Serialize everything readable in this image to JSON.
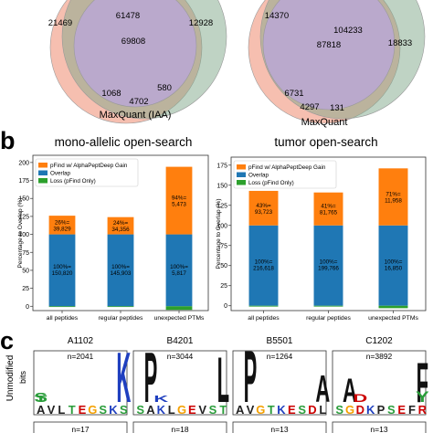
{
  "panel_letters": {
    "b": "b",
    "c": "c"
  },
  "venn": {
    "left": {
      "label": "MaxQuant (IAA)",
      "regions": [
        "21469",
        "61478",
        "12928",
        "69808",
        "1068",
        "4702",
        "580"
      ]
    },
    "right": {
      "label": "MaxQuant",
      "regions": [
        "14370",
        "104233",
        "18833",
        "87818",
        "6731",
        "4297",
        "131"
      ]
    }
  },
  "chart_data": [
    {
      "type": "bar",
      "title": "mono-allelic open-search",
      "xlabel": "",
      "ylabel": "Percentage to Overlap (%)",
      "ylim": [
        0,
        210
      ],
      "yticks": [
        "0",
        "25",
        "50",
        "75",
        "100",
        "125",
        "150",
        "175",
        "200"
      ],
      "legend_position": "top-left",
      "categories": [
        "all peptides",
        "regular peptides",
        "unexpected PTMs"
      ],
      "series": [
        {
          "name": "pFind w/ AlphaPeptDeep Gain",
          "color": "#ff7f0e",
          "values": [
            26,
            24,
            94
          ]
        },
        {
          "name": "Overlap",
          "color": "#1f77b4",
          "values": [
            100,
            100,
            100
          ]
        },
        {
          "name": "Loss (pFind Only)",
          "color": "#2ca02c",
          "values": [
            -1,
            -1,
            -5
          ]
        }
      ],
      "gain_labels": [
        [
          "26%=",
          "39,829"
        ],
        [
          "24%=",
          "34,356"
        ],
        [
          "94%=",
          "5,473"
        ]
      ],
      "overlap_labels": [
        [
          "100%=",
          "150,820"
        ],
        [
          "100%=",
          "145,903"
        ],
        [
          "100%=",
          "5,817"
        ]
      ]
    },
    {
      "type": "bar",
      "title": "tumor open-search",
      "xlabel": "",
      "ylabel": "Percentage to Overlap (%)",
      "ylim": [
        0,
        185
      ],
      "yticks": [
        "0",
        "25",
        "50",
        "75",
        "100",
        "125",
        "150",
        "175"
      ],
      "legend_position": "top-left",
      "categories": [
        "all peptides",
        "regular peptides",
        "unexpected PTMs"
      ],
      "series": [
        {
          "name": "pFind w/ AlphaPeptDeep Gain",
          "color": "#ff7f0e",
          "values": [
            43,
            41,
            71
          ]
        },
        {
          "name": "Overlap",
          "color": "#1f77b4",
          "values": [
            100,
            100,
            100
          ]
        },
        {
          "name": "Loss (pFind Only)",
          "color": "#2ca02c",
          "values": [
            -1,
            -1,
            -3
          ]
        }
      ],
      "gain_labels": [
        [
          "43%=",
          "93,723"
        ],
        [
          "41%=",
          "81,765"
        ],
        [
          "71%=",
          "11,958"
        ]
      ],
      "overlap_labels": [
        [
          "100%=",
          "216,618"
        ],
        [
          "100%=",
          "199,766"
        ],
        [
          "100%=",
          "16,850"
        ]
      ]
    }
  ],
  "logos": {
    "ylabel_top": "Unmodified",
    "ylabel_bits": "bits",
    "alleles": [
      {
        "name": "A1102",
        "n_top": "n=2041",
        "n_bottom": "n=17"
      },
      {
        "name": "B4201",
        "n_top": "n=3044",
        "n_bottom": "n=18"
      },
      {
        "name": "B5501",
        "n_top": "n=1264",
        "n_bottom": "n=13"
      },
      {
        "name": "C1202",
        "n_top": "n=3892",
        "n_bottom": "n=13"
      }
    ]
  }
}
